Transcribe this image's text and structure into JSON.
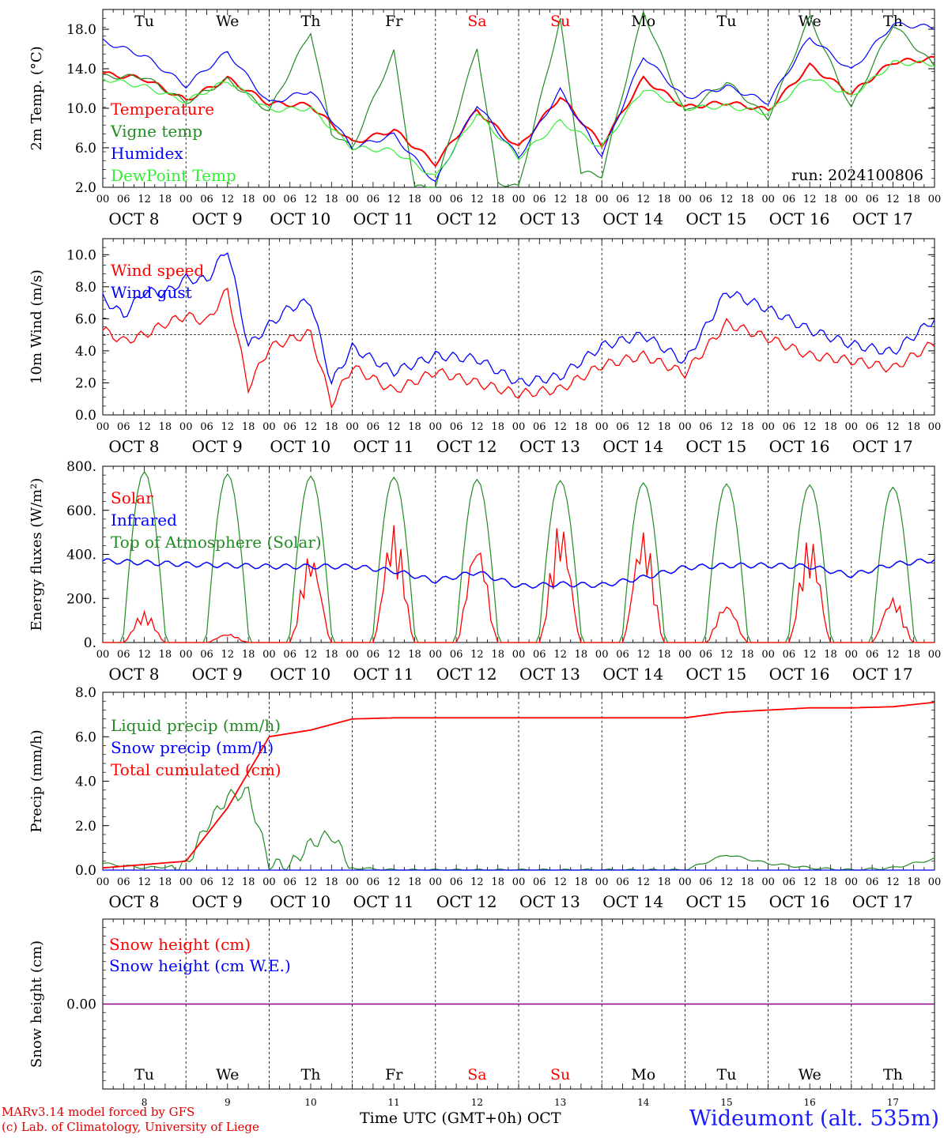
{
  "days": [
    {
      "abbr": "Tu",
      "label": "OCT  8",
      "num": "8",
      "weekend": false
    },
    {
      "abbr": "We",
      "label": "OCT  9",
      "num": "9",
      "weekend": false
    },
    {
      "abbr": "Th",
      "label": "OCT 10",
      "num": "10",
      "weekend": false
    },
    {
      "abbr": "Fr",
      "label": "OCT 11",
      "num": "11",
      "weekend": false
    },
    {
      "abbr": "Sa",
      "label": "OCT 12",
      "num": "12",
      "weekend": true
    },
    {
      "abbr": "Su",
      "label": "OCT 13",
      "num": "13",
      "weekend": true
    },
    {
      "abbr": "Mo",
      "label": "OCT 14",
      "num": "14",
      "weekend": false
    },
    {
      "abbr": "Tu",
      "label": "OCT 15",
      "num": "15",
      "weekend": false
    },
    {
      "abbr": "We",
      "label": "OCT 16",
      "num": "16",
      "weekend": false
    },
    {
      "abbr": "Th",
      "label": "OCT 17",
      "num": "17",
      "weekend": false
    }
  ],
  "hour_ticks": [
    "00",
    "06",
    "12",
    "18"
  ],
  "hour_end": "00",
  "footer": {
    "credit_line1": "MARv3.14 model forced by GFS",
    "credit_line2": "(c) Lab. of Climatology, University of Liege",
    "xlabel": "Time UTC (GMT+0h) OCT",
    "station": "Wideumont (alt. 535m)"
  },
  "colors": {
    "red": "#ff0000",
    "green": "#00a000",
    "darkgreen": "#228b22",
    "blue": "#0000ff",
    "lightgreen": "#33ee33",
    "purple": "#8b008b"
  },
  "chart_data": [
    {
      "type": "line",
      "ylabel": "2m Temp. (°C)",
      "ylim": [
        2,
        20
      ],
      "yticks": [
        "2.0",
        "6.0",
        "10.0",
        "14.0",
        "18.0"
      ],
      "yticks_val": [
        2,
        6,
        10,
        14,
        18
      ],
      "annotation": "run: 2024100806",
      "x_unit": "hours from 2024-10-08 00 UTC",
      "series": [
        {
          "name": "Temperature",
          "color": "#ff0000",
          "x": [
            0,
            12,
            24,
            36,
            48,
            60,
            72,
            84,
            96,
            108,
            120,
            132,
            144,
            156,
            168,
            180,
            192,
            204,
            216,
            228,
            240
          ],
          "values": [
            13.5,
            13.0,
            10.8,
            13.0,
            10.5,
            10.3,
            6.5,
            7.8,
            4.4,
            9.8,
            6.0,
            11.2,
            6.3,
            13.0,
            10.1,
            10.6,
            9.8,
            14.3,
            11.5,
            14.7,
            15.0
          ]
        },
        {
          "name": "Vigne temp",
          "color": "#228b22",
          "x": [
            0,
            12,
            24,
            36,
            48,
            60,
            66,
            72,
            84,
            90,
            96,
            108,
            114,
            120,
            132,
            138,
            144,
            156,
            168,
            180,
            192,
            204,
            216,
            228,
            240
          ],
          "values": [
            13.2,
            13.2,
            10.6,
            12.9,
            9.7,
            17.8,
            7.5,
            6.0,
            15.7,
            2.0,
            2.0,
            16.2,
            2.5,
            2.0,
            19.0,
            3.5,
            3.2,
            19.8,
            9.5,
            12.7,
            9.0,
            19.2,
            10.0,
            18.5,
            14.3
          ]
        },
        {
          "name": "Humidex",
          "color": "#0000ff",
          "x": [
            0,
            12,
            24,
            36,
            48,
            60,
            72,
            84,
            96,
            108,
            120,
            132,
            144,
            156,
            168,
            180,
            192,
            204,
            216,
            228,
            240
          ],
          "values": [
            16.8,
            15.3,
            12.3,
            15.7,
            10.5,
            11.8,
            6.0,
            7.3,
            2.5,
            10.4,
            5.0,
            11.8,
            5.2,
            15.3,
            11.0,
            12.2,
            10.6,
            17.2,
            13.8,
            18.5,
            18.2
          ]
        },
        {
          "name": "DewPoint Temp",
          "color": "#33ee33",
          "x": [
            0,
            12,
            24,
            36,
            48,
            60,
            72,
            84,
            96,
            108,
            120,
            132,
            144,
            156,
            168,
            180,
            192,
            204,
            216,
            228,
            240
          ],
          "values": [
            13.0,
            12.2,
            10.7,
            12.8,
            9.8,
            10.0,
            6.0,
            5.7,
            3.0,
            9.5,
            5.0,
            8.7,
            6.0,
            12.0,
            10.0,
            10.2,
            9.5,
            13.2,
            11.2,
            14.6,
            14.5
          ]
        }
      ]
    },
    {
      "type": "line",
      "ylabel": "10m Wind (m/s)",
      "ylim": [
        0,
        11
      ],
      "yticks": [
        "0.0",
        "2.0",
        "4.0",
        "6.0",
        "8.0",
        "10.0"
      ],
      "yticks_val": [
        0,
        2,
        4,
        6,
        8,
        10
      ],
      "reference_line": 5,
      "series": [
        {
          "name": "Wind speed",
          "color": "#ff0000",
          "x": [
            0,
            6,
            12,
            18,
            24,
            30,
            36,
            42,
            48,
            54,
            60,
            66,
            72,
            84,
            96,
            108,
            120,
            132,
            144,
            156,
            168,
            180,
            192,
            204,
            216,
            228,
            240
          ],
          "values": [
            5.3,
            4.6,
            5.0,
            5.7,
            6.2,
            5.8,
            7.8,
            1.7,
            4.2,
            4.7,
            5.1,
            0.7,
            3.0,
            1.5,
            2.7,
            2.0,
            1.3,
            1.6,
            3.1,
            3.7,
            2.6,
            5.7,
            4.8,
            3.7,
            3.4,
            2.9,
            4.5
          ]
        },
        {
          "name": "Wind gust",
          "color": "#0000ff",
          "x": [
            0,
            6,
            12,
            18,
            24,
            30,
            36,
            42,
            48,
            54,
            60,
            66,
            72,
            84,
            96,
            108,
            120,
            132,
            144,
            156,
            168,
            180,
            192,
            204,
            216,
            228,
            240
          ],
          "values": [
            7.3,
            6.2,
            7.7,
            7.6,
            8.5,
            8.4,
            10.4,
            4.3,
            5.6,
            6.7,
            7.1,
            2.0,
            4.2,
            2.7,
            3.7,
            3.5,
            2.0,
            2.4,
            4.3,
            5.0,
            3.3,
            7.7,
            6.6,
            5.3,
            4.4,
            3.9,
            6.0
          ]
        }
      ]
    },
    {
      "type": "line",
      "ylabel": "Energy fluxes (W/m²)",
      "ylim": [
        0,
        800
      ],
      "yticks": [
        "0.",
        "200.",
        "400.",
        "600.",
        "800."
      ],
      "yticks_val": [
        0,
        200,
        400,
        600,
        800
      ],
      "daily_peak_hour": 12,
      "series": [
        {
          "name": "Solar",
          "color": "#ff0000",
          "daily_peaks": [
            140,
            40,
            410,
            535,
            465,
            550,
            510,
            180,
            480,
            210
          ]
        },
        {
          "name": "Infrared",
          "color": "#0000ff",
          "x": [
            0,
            24,
            48,
            72,
            84,
            96,
            108,
            120,
            132,
            144,
            156,
            168,
            180,
            192,
            204,
            216,
            228,
            240
          ],
          "values": [
            370,
            355,
            345,
            345,
            325,
            280,
            320,
            255,
            265,
            260,
            295,
            340,
            350,
            350,
            345,
            305,
            355,
            375
          ]
        },
        {
          "name": "Top of Atmosphere (Solar)",
          "color": "#228b22",
          "daily_peaks": [
            775,
            765,
            755,
            750,
            740,
            735,
            725,
            720,
            715,
            705
          ]
        }
      ]
    },
    {
      "type": "line",
      "ylabel": "Precip (mm/h)",
      "ylim": [
        0,
        8
      ],
      "yticks": [
        "0.0",
        "2.0",
        "4.0",
        "6.0",
        "8.0"
      ],
      "yticks_val": [
        0,
        2,
        4,
        6,
        8
      ],
      "series": [
        {
          "name": "Liquid precip (mm/h)",
          "color": "#228b22",
          "x": [
            0,
            12,
            24,
            30,
            36,
            42,
            48,
            54,
            60,
            66,
            72,
            84,
            168,
            180,
            192,
            204,
            216,
            228,
            240
          ],
          "values": [
            0.3,
            0.1,
            0.2,
            2.0,
            3.3,
            3.5,
            0.3,
            0.2,
            1.2,
            1.6,
            0.1,
            0.0,
            0.0,
            0.7,
            0.3,
            0.1,
            0.0,
            0.1,
            0.5
          ]
        },
        {
          "name": "Snow precip (mm/h)",
          "color": "#0000ff",
          "x": [
            0,
            240
          ],
          "values": [
            0,
            0
          ]
        },
        {
          "name": "Total cumulated (cm)",
          "color": "#ff0000",
          "x": [
            0,
            24,
            36,
            48,
            60,
            72,
            84,
            96,
            168,
            180,
            192,
            204,
            216,
            228,
            240
          ],
          "values": [
            0.1,
            0.4,
            2.8,
            6.0,
            6.3,
            6.8,
            6.85,
            6.85,
            6.85,
            7.1,
            7.2,
            7.3,
            7.3,
            7.35,
            7.55
          ]
        }
      ]
    },
    {
      "type": "line",
      "ylabel": "Snow height (cm)",
      "ylim": [
        -1,
        1
      ],
      "yticks": [
        "0.00"
      ],
      "yticks_val": [
        0
      ],
      "series": [
        {
          "name": "Snow height (cm)",
          "color": "#ff0000",
          "x": [
            0,
            240
          ],
          "values": [
            0,
            0
          ]
        },
        {
          "name": "Snow height (cm W.E.)",
          "color": "#0000ff",
          "x": [
            0,
            240
          ],
          "values": [
            0,
            0
          ]
        }
      ]
    }
  ]
}
